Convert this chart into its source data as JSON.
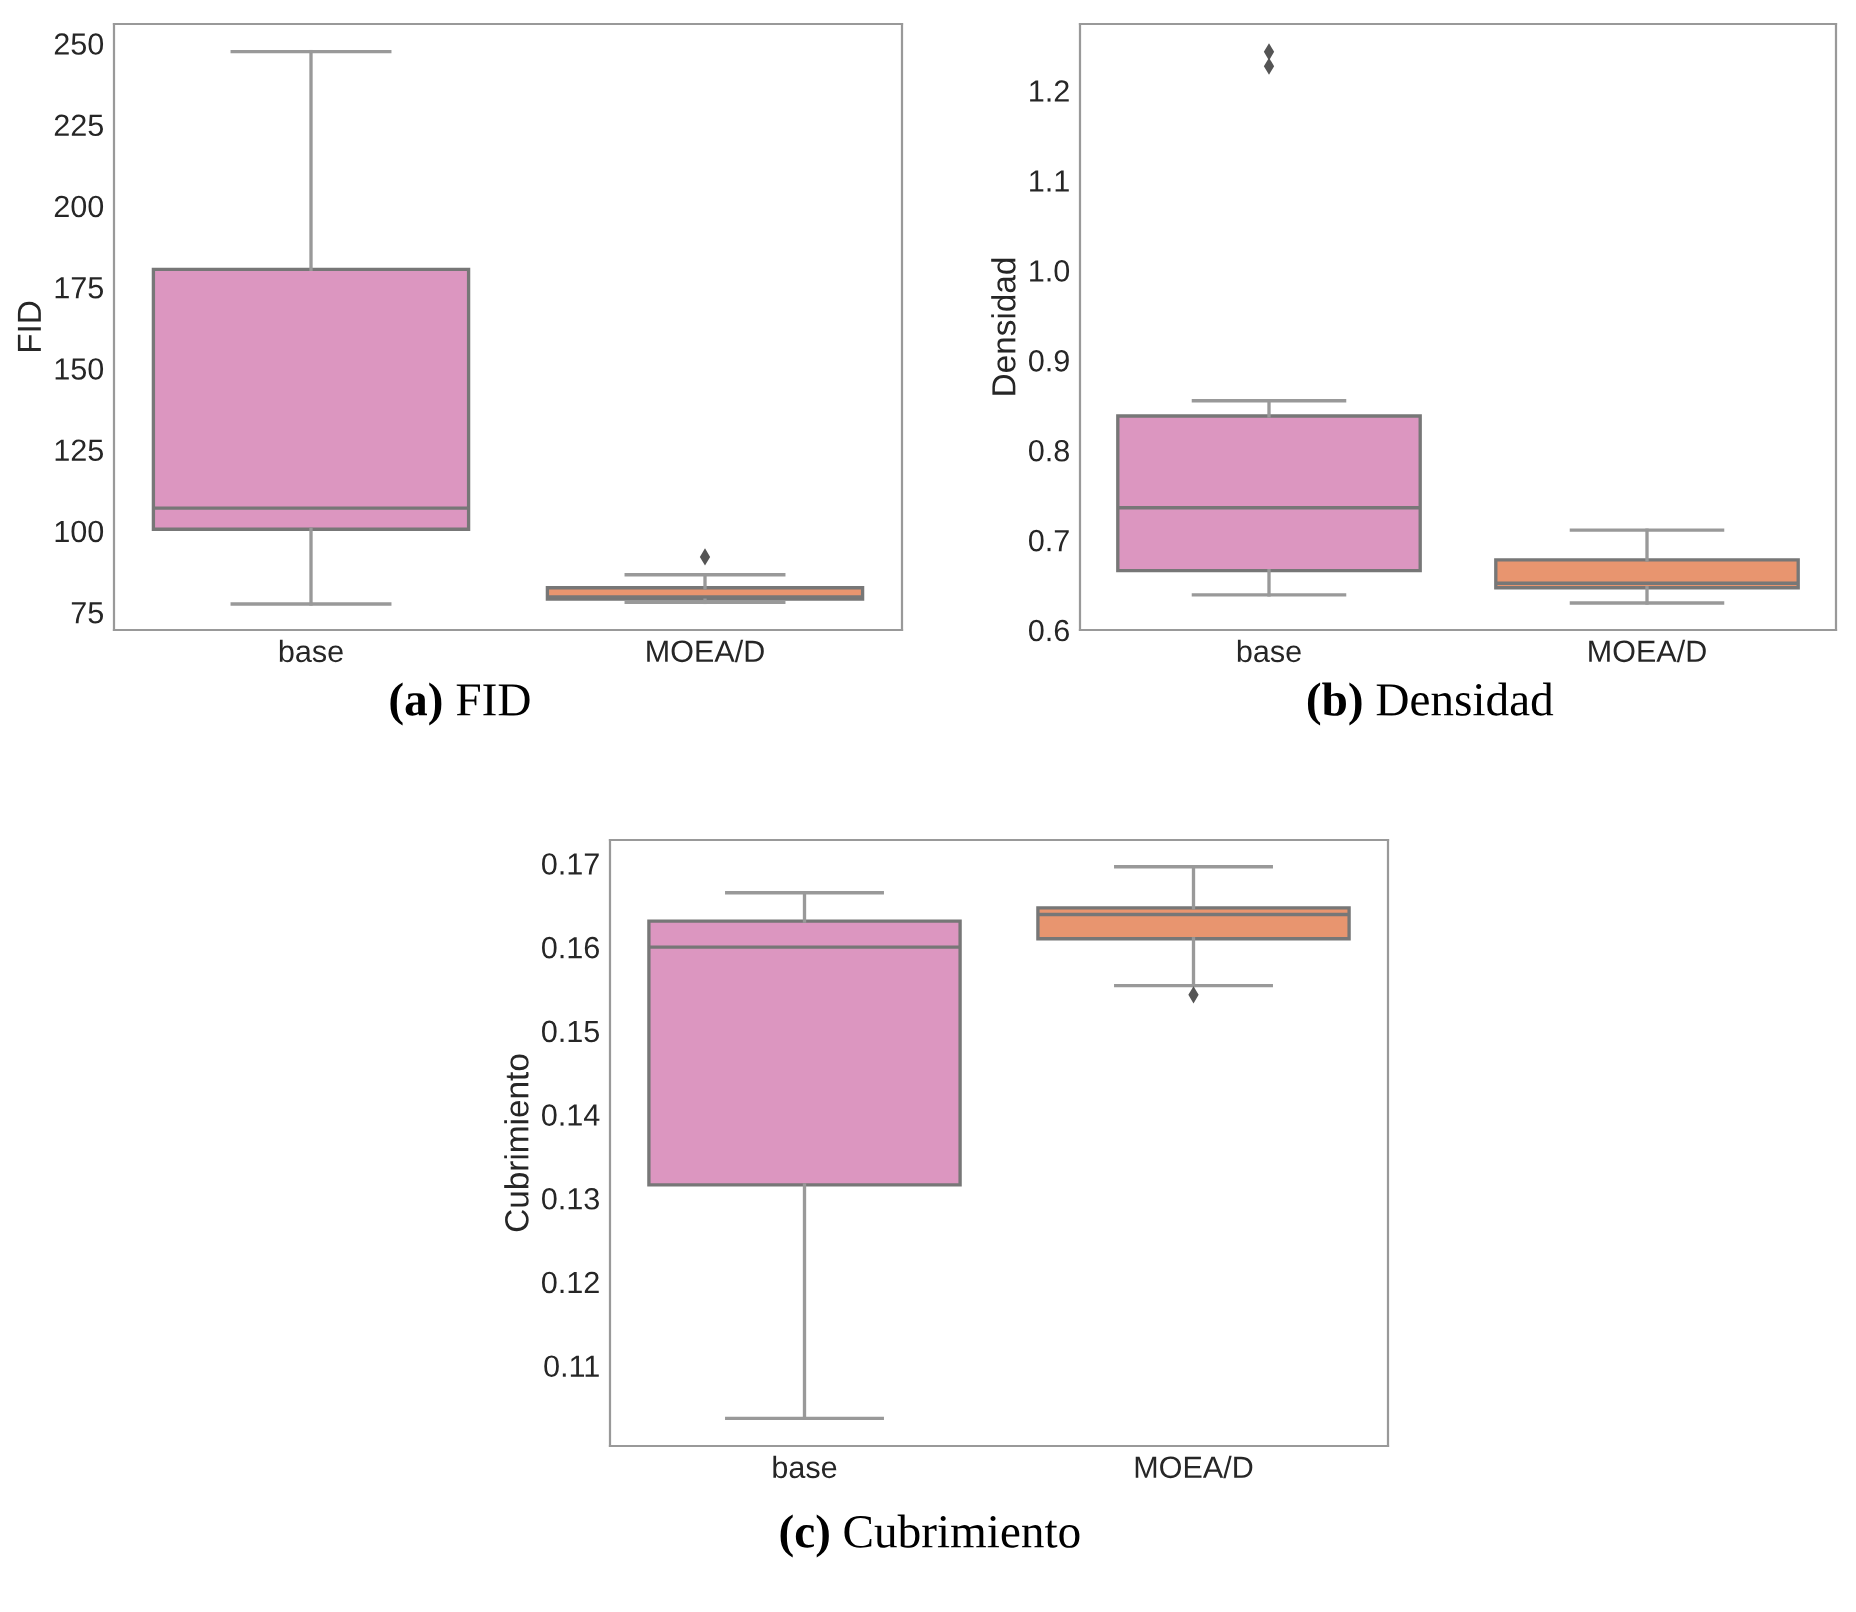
{
  "chart_data": [
    {
      "type": "box",
      "title": "(a) FID",
      "ylabel": "FID",
      "categories": [
        "base",
        "MOEA/D"
      ],
      "colors": [
        "#dc96c0",
        "#e8956f"
      ],
      "boxes": [
        {
          "low": 77.5,
          "q1": 100.5,
          "median": 107,
          "q3": 180.5,
          "high": 247.5
        },
        {
          "low": 78,
          "q1": 79,
          "median": 79.7,
          "q3": 82.5,
          "high": 86.5,
          "outliers": [
            92
          ]
        }
      ],
      "ylim": [
        69.5,
        256
      ],
      "yticks": [
        75,
        100,
        125,
        150,
        175,
        200,
        225,
        250
      ],
      "grid": false
    },
    {
      "type": "box",
      "title": "(b) Densidad",
      "ylabel": "Densidad",
      "categories": [
        "base",
        "MOEA/D"
      ],
      "colors": [
        "#dc96c0",
        "#e8956f"
      ],
      "boxes": [
        {
          "low": 0.639,
          "q1": 0.666,
          "median": 0.736,
          "q3": 0.838,
          "high": 0.855,
          "outliers": [
            1.227,
            1.243
          ]
        },
        {
          "low": 0.63,
          "q1": 0.647,
          "median": 0.652,
          "q3": 0.678,
          "high": 0.711
        }
      ],
      "ylim": [
        0.6,
        1.274
      ],
      "yticks": [
        {
          "value": 0.6,
          "label": "0.6"
        },
        {
          "value": 0.7,
          "label": "0.7"
        },
        {
          "value": 0.8,
          "label": "0.8"
        },
        {
          "value": 0.9,
          "label": "0.9"
        },
        {
          "value": 1.0,
          "label": "1.0"
        },
        {
          "value": 1.1,
          "label": "1.1"
        },
        {
          "value": 1.2,
          "label": "1.2"
        }
      ],
      "grid": false
    },
    {
      "type": "box",
      "title": "(c) Cubrimiento",
      "ylabel": "Cubrimiento",
      "categories": [
        "base",
        "MOEA/D"
      ],
      "colors": [
        "#dc96c0",
        "#e8956f"
      ],
      "boxes": [
        {
          "low": 0.1037,
          "q1": 0.1316,
          "median": 0.16,
          "q3": 0.1631,
          "high": 0.1665
        },
        {
          "low": 0.1554,
          "q1": 0.161,
          "median": 0.1639,
          "q3": 0.1647,
          "high": 0.1696,
          "outliers": [
            0.1543
          ]
        }
      ],
      "ylim": [
        0.1004,
        0.1728
      ],
      "yticks": [
        0.11,
        0.12,
        0.13,
        0.14,
        0.15,
        0.16,
        0.17
      ],
      "grid": false
    }
  ]
}
